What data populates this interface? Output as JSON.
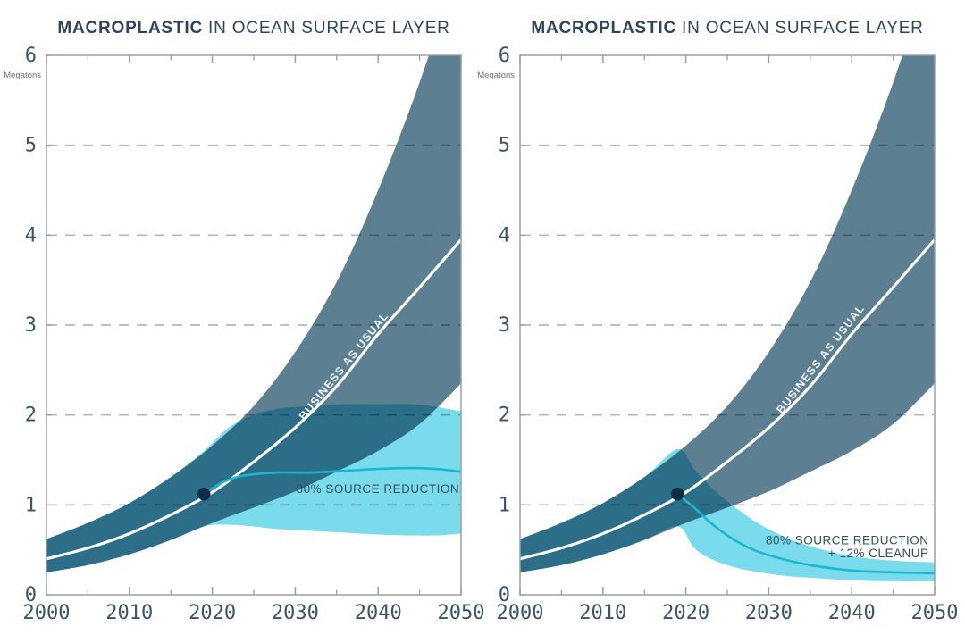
{
  "page": {
    "background": "#ffffff"
  },
  "colors": {
    "bau_band": "#5d7f92",
    "scenario_band": "#79dbec",
    "bau_line": "#ffffff",
    "scenario_line": "#1bb7d1",
    "marker_dot": "#0d2c47",
    "gridline": "#b2b8bb",
    "axis": "#9aa1a5",
    "title_text": "#30455c",
    "tick_label": "#3a5568",
    "scenario_label": "#2e4f66",
    "unit_label": "#6b7478",
    "bau_label": "#f2f7f9"
  },
  "chart_data": {
    "type": "area",
    "x_range": [
      2000,
      2050
    ],
    "y_range": [
      0,
      6
    ],
    "charts": [
      {
        "title": {
          "bold": "MACROPLASTIC",
          "rest": " IN OCEAN SURFACE LAYER"
        },
        "y_axis_label": "Megatons",
        "x_tick_years": [
          2000,
          2010,
          2020,
          2030,
          2040,
          2050
        ],
        "x_tick_labels": [
          "2000",
          "2010",
          "2020",
          "2030",
          "2040",
          "2050"
        ],
        "x_minor_ticks": [
          2005,
          2015,
          2025,
          2035,
          2045
        ],
        "y_tick_values": [
          0,
          1,
          2,
          3,
          4,
          5,
          6
        ],
        "y_tick_labels": [
          "0",
          "1",
          "2",
          "3",
          "4",
          "5",
          "6"
        ],
        "gridline_values": [
          1,
          2,
          3,
          4,
          5
        ],
        "bau": {
          "label": "BUSINESS AS USUAL",
          "x": [
            2000,
            2005,
            2010,
            2015,
            2020,
            2025,
            2030,
            2035,
            2040,
            2045,
            2050
          ],
          "upper": [
            0.62,
            0.8,
            1.02,
            1.31,
            1.66,
            2.1,
            2.7,
            3.48,
            4.5,
            5.7,
            7.1
          ],
          "lower": [
            0.25,
            0.33,
            0.45,
            0.61,
            0.8,
            0.97,
            1.15,
            1.37,
            1.6,
            1.9,
            2.35
          ],
          "line": [
            0.4,
            0.52,
            0.68,
            0.89,
            1.14,
            1.48,
            1.86,
            2.32,
            2.9,
            3.42,
            3.95
          ]
        },
        "scenario": {
          "label_lines": [
            "80% SOURCE REDUCTION"
          ],
          "x": [
            2000,
            2005,
            2010,
            2015,
            2019,
            2022,
            2025,
            2028,
            2032,
            2036,
            2040,
            2044,
            2047,
            2050
          ],
          "upper": [
            0.62,
            0.8,
            1.02,
            1.31,
            1.6,
            1.86,
            2.0,
            2.07,
            2.1,
            2.12,
            2.12,
            2.12,
            2.09,
            2.04
          ],
          "lower": [
            0.25,
            0.33,
            0.45,
            0.61,
            0.76,
            0.78,
            0.76,
            0.73,
            0.71,
            0.69,
            0.67,
            0.66,
            0.66,
            0.68
          ],
          "line_x": [
            2019,
            2021,
            2023,
            2025,
            2028,
            2032,
            2036,
            2040,
            2044,
            2047,
            2050
          ],
          "line_y": [
            1.12,
            1.24,
            1.31,
            1.34,
            1.36,
            1.36,
            1.38,
            1.4,
            1.41,
            1.4,
            1.37
          ]
        },
        "marker": {
          "year": 2019,
          "value": 1.12
        }
      },
      {
        "title": {
          "bold": "MACROPLASTIC",
          "rest": " IN OCEAN SURFACE LAYER"
        },
        "y_axis_label": "Megatons",
        "x_tick_years": [
          2000,
          2010,
          2020,
          2030,
          2040,
          2050
        ],
        "x_tick_labels": [
          "2000",
          "2010",
          "2020",
          "2030",
          "2040",
          "2050"
        ],
        "x_minor_ticks": [
          2005,
          2015,
          2025,
          2035,
          2045
        ],
        "y_tick_values": [
          0,
          1,
          2,
          3,
          4,
          5,
          6
        ],
        "y_tick_labels": [
          "0",
          "1",
          "2",
          "3",
          "4",
          "5",
          "6"
        ],
        "gridline_values": [
          1,
          2,
          3,
          4,
          5
        ],
        "bau": {
          "label": "BUSINESS AS USUAL",
          "x": [
            2000,
            2005,
            2010,
            2015,
            2020,
            2025,
            2030,
            2035,
            2040,
            2045,
            2050
          ],
          "upper": [
            0.62,
            0.8,
            1.02,
            1.31,
            1.66,
            2.1,
            2.7,
            3.48,
            4.5,
            5.7,
            7.1
          ],
          "lower": [
            0.25,
            0.33,
            0.45,
            0.61,
            0.8,
            0.97,
            1.15,
            1.37,
            1.6,
            1.9,
            2.35
          ],
          "line": [
            0.4,
            0.52,
            0.68,
            0.89,
            1.14,
            1.48,
            1.86,
            2.32,
            2.9,
            3.42,
            3.95
          ]
        },
        "scenario": {
          "label_lines": [
            "80% SOURCE REDUCTION",
            "+ 12% CLEANUP"
          ],
          "x": [
            2000,
            2005,
            2010,
            2015,
            2019,
            2021,
            2023,
            2025,
            2027,
            2029,
            2032,
            2035,
            2040,
            2045,
            2050
          ],
          "upper": [
            0.62,
            0.8,
            1.02,
            1.31,
            1.62,
            1.4,
            1.2,
            1.04,
            0.9,
            0.78,
            0.64,
            0.54,
            0.43,
            0.38,
            0.36
          ],
          "lower": [
            0.25,
            0.33,
            0.45,
            0.61,
            0.76,
            0.52,
            0.4,
            0.33,
            0.28,
            0.25,
            0.21,
            0.19,
            0.16,
            0.15,
            0.15
          ],
          "line_x": [
            2019,
            2021,
            2023,
            2025,
            2027,
            2029,
            2032,
            2035,
            2040,
            2045,
            2050
          ],
          "line_y": [
            1.12,
            0.97,
            0.8,
            0.66,
            0.55,
            0.47,
            0.39,
            0.33,
            0.27,
            0.25,
            0.24
          ]
        },
        "marker": {
          "year": 2019,
          "value": 1.12
        }
      }
    ]
  }
}
